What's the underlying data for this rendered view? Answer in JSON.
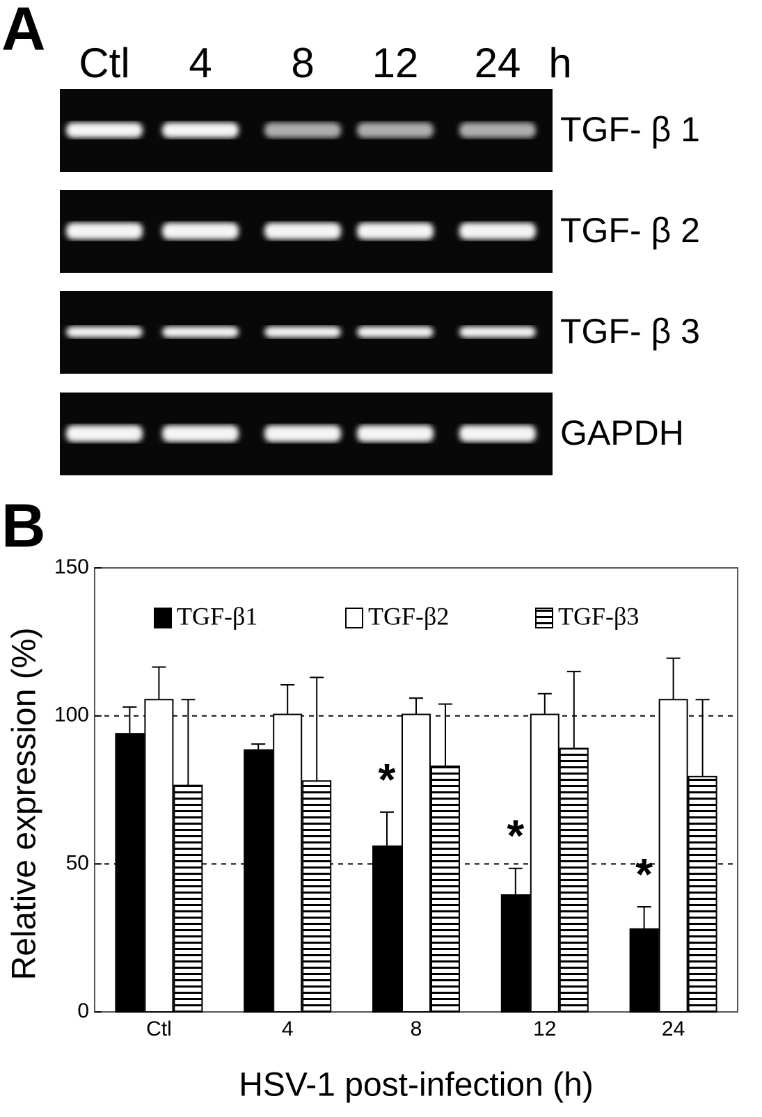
{
  "panel_a": {
    "label": "A",
    "lanes": [
      "Ctl",
      "4",
      "8",
      "12",
      "24"
    ],
    "unit": "h",
    "genes": [
      "TGF- β 1",
      "TGF- β 2",
      "TGF- β 3",
      "GAPDH"
    ]
  },
  "panel_b_label": "B",
  "chart_data": {
    "type": "bar",
    "xlabel": "HSV-1 post-infection (h)",
    "ylabel": "Relative expression (%)",
    "categories": [
      "Ctl",
      "4",
      "8",
      "12",
      "24"
    ],
    "series": [
      {
        "name": "TGF-β1",
        "color": "#000000",
        "values": [
          94,
          88.5,
          56,
          39.5,
          28
        ],
        "errors": [
          9,
          2,
          11.5,
          9,
          7.5
        ]
      },
      {
        "name": "TGF-β2",
        "color": "#ffffff",
        "values": [
          105.5,
          100.5,
          100.5,
          100.5,
          105.5
        ],
        "errors": [
          11,
          10,
          5.5,
          7,
          14
        ]
      },
      {
        "name": "TGF-β3",
        "color": "#ffffff",
        "hatch": "horizontal",
        "values": [
          76.5,
          78,
          83,
          89,
          79.5
        ],
        "errors": [
          29,
          35,
          21,
          26,
          26
        ]
      }
    ],
    "significance": [
      null,
      null,
      "*",
      "*",
      "*"
    ],
    "ylim": [
      0,
      150
    ],
    "yticks": [
      0,
      50,
      100,
      150
    ],
    "ref_lines": [
      50,
      100
    ]
  }
}
